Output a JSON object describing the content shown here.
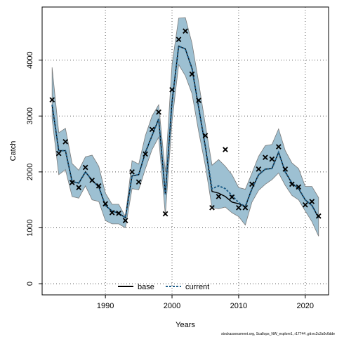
{
  "chart_data": {
    "type": "line",
    "xlabel": "Years",
    "ylabel": "Catch",
    "xlim": [
      1980.5,
      2023.5
    ],
    "ylim": [
      -200,
      4950
    ],
    "x_ticks": [
      1990,
      2000,
      2010,
      2020
    ],
    "y_ticks": [
      0,
      1000,
      2000,
      3000,
      4000
    ],
    "grid": true,
    "legend_position": "bottom-center",
    "colors": {
      "band": "#9dc0d2",
      "band_edge": "#7a7a7a",
      "base": "#000000",
      "current": "#1f5f8a"
    },
    "x": [
      1982,
      1983,
      1984,
      1985,
      1986,
      1987,
      1988,
      1989,
      1990,
      1991,
      1992,
      1993,
      1994,
      1995,
      1996,
      1997,
      1998,
      1999,
      2000,
      2001,
      2002,
      2003,
      2004,
      2005,
      2006,
      2007,
      2008,
      2009,
      2010,
      2011,
      2012,
      2013,
      2014,
      2015,
      2016,
      2017,
      2018,
      2019,
      2020,
      2021,
      2022
    ],
    "series": [
      {
        "name": "base",
        "style": "solid",
        "values": [
          3200,
          2380,
          2380,
          1830,
          1800,
          2000,
          1850,
          1730,
          1400,
          1300,
          1260,
          1180,
          1930,
          1950,
          2350,
          2650,
          2950,
          1600,
          3250,
          4250,
          4200,
          3850,
          3150,
          2450,
          1650,
          1620,
          1560,
          1460,
          1430,
          1380,
          1700,
          1950,
          2050,
          2060,
          2350,
          2000,
          1800,
          1700,
          1500,
          1400,
          1180
        ]
      },
      {
        "name": "current",
        "style": "dashed",
        "values": [
          3200,
          2380,
          2380,
          1830,
          1800,
          2000,
          1850,
          1730,
          1400,
          1300,
          1260,
          1180,
          1930,
          1950,
          2350,
          2650,
          2950,
          1600,
          3250,
          4250,
          4200,
          3850,
          3150,
          2450,
          1700,
          1750,
          1700,
          1580,
          1450,
          1380,
          1700,
          1950,
          2050,
          2060,
          2350,
          2000,
          1800,
          1700,
          1500,
          1400,
          1180
        ]
      }
    ],
    "band_upper": [
      3870,
      2700,
      2780,
      2150,
      2030,
      2270,
      2300,
      2100,
      1620,
      1420,
      1420,
      1200,
      2200,
      2140,
      2650,
      3000,
      3200,
      2000,
      3920,
      4750,
      4760,
      4300,
      3600,
      2840,
      2120,
      2220,
      2100,
      1950,
      1720,
      1690,
      1980,
      2280,
      2470,
      2490,
      2770,
      2380,
      2160,
      2060,
      1740,
      1740,
      1540
    ],
    "band_lower": [
      2950,
      1950,
      2040,
      1560,
      1530,
      1750,
      1500,
      1470,
      1130,
      1070,
      1070,
      1000,
      1700,
      1680,
      2060,
      2400,
      2620,
      1230,
      2900,
      3920,
      3720,
      3400,
      2720,
      2110,
      1360,
      1340,
      1370,
      1270,
      1200,
      1050,
      1460,
      1670,
      1780,
      1860,
      1980,
      1760,
      1580,
      1500,
      1300,
      1110,
      850
    ],
    "observations": [
      {
        "x": 1982,
        "y": 3290
      },
      {
        "x": 1983,
        "y": 2330
      },
      {
        "x": 1984,
        "y": 2540
      },
      {
        "x": 1985,
        "y": 1810
      },
      {
        "x": 1986,
        "y": 1720
      },
      {
        "x": 1987,
        "y": 2080
      },
      {
        "x": 1988,
        "y": 1850
      },
      {
        "x": 1989,
        "y": 1750
      },
      {
        "x": 1990,
        "y": 1430
      },
      {
        "x": 1991,
        "y": 1270
      },
      {
        "x": 1992,
        "y": 1260
      },
      {
        "x": 1993,
        "y": 1130
      },
      {
        "x": 1994,
        "y": 2000
      },
      {
        "x": 1995,
        "y": 1820
      },
      {
        "x": 1996,
        "y": 2320
      },
      {
        "x": 1997,
        "y": 2760
      },
      {
        "x": 1998,
        "y": 3070
      },
      {
        "x": 1999,
        "y": 1250
      },
      {
        "x": 2000,
        "y": 3470
      },
      {
        "x": 2001,
        "y": 4370
      },
      {
        "x": 2002,
        "y": 4520
      },
      {
        "x": 2003,
        "y": 3750
      },
      {
        "x": 2004,
        "y": 3280
      },
      {
        "x": 2005,
        "y": 2650
      },
      {
        "x": 2006,
        "y": 1360
      },
      {
        "x": 2007,
        "y": 1560
      },
      {
        "x": 2008,
        "y": 2400
      },
      {
        "x": 2009,
        "y": 1550
      },
      {
        "x": 2010,
        "y": 1360
      },
      {
        "x": 2011,
        "y": 1360
      },
      {
        "x": 2012,
        "y": 1780
      },
      {
        "x": 2013,
        "y": 2050
      },
      {
        "x": 2014,
        "y": 2260
      },
      {
        "x": 2015,
        "y": 2230
      },
      {
        "x": 2016,
        "y": 2450
      },
      {
        "x": 2017,
        "y": 2050
      },
      {
        "x": 2018,
        "y": 1780
      },
      {
        "x": 2019,
        "y": 1730
      },
      {
        "x": 2020,
        "y": 1410
      },
      {
        "x": 2021,
        "y": 1470
      },
      {
        "x": 2022,
        "y": 1210
      }
    ],
    "legend": [
      "base",
      "current"
    ],
    "footer": "stockassessment.org, Scallops_NW_explore1, r17744 ,git:ec2c2a0c6dde"
  }
}
